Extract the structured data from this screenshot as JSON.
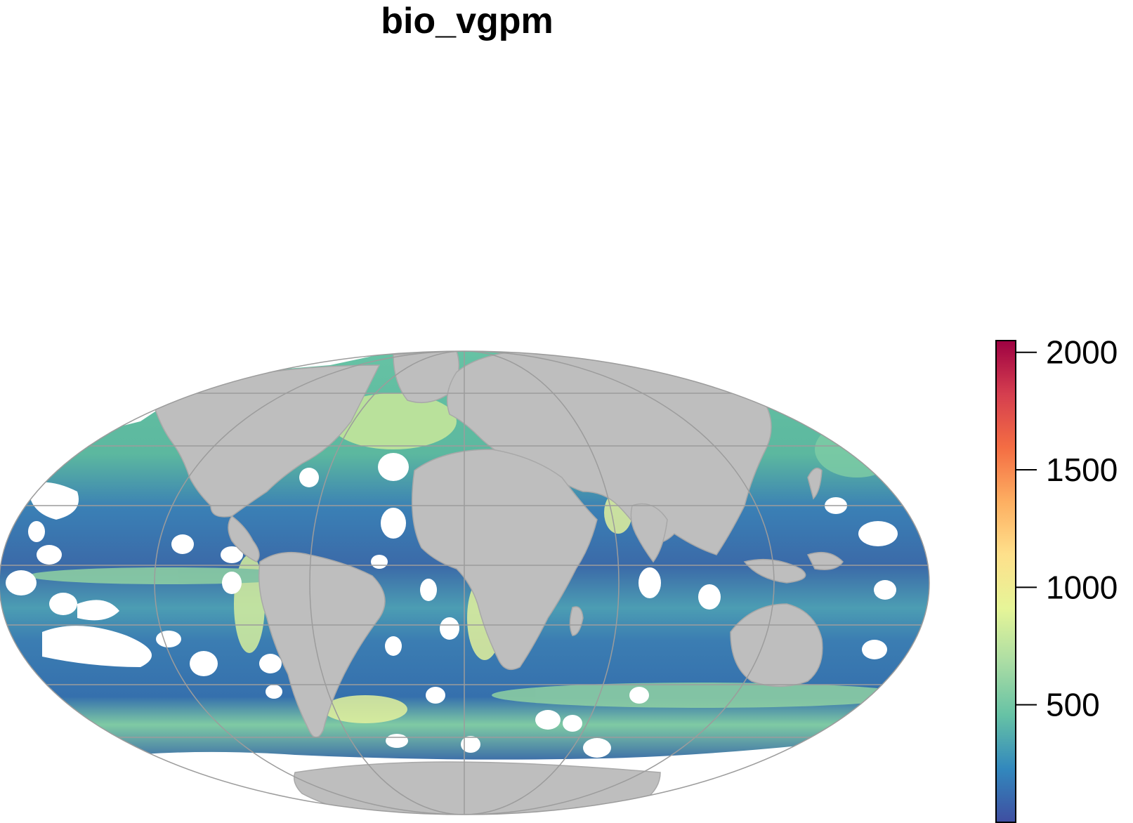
{
  "title": "bio_vgpm",
  "colors": {
    "land": "#bebebe",
    "land_border": "#a8a8a8",
    "graticule": "#9c9c9c",
    "no_data": "#ffffff",
    "ocean_low": "#3a4ea0",
    "ocean_mid": "#2f7fb4",
    "ocean_green": "#66c2a4",
    "ocean_high": "#e6f598"
  },
  "legend": {
    "min": 0,
    "max": 2050,
    "ticks": [
      {
        "value": 2000,
        "label": "2000"
      },
      {
        "value": 1500,
        "label": "1500"
      },
      {
        "value": 1000,
        "label": "1000"
      },
      {
        "value": 500,
        "label": "500"
      }
    ],
    "palette": [
      "#3f4ea1",
      "#3288bd",
      "#66c2a5",
      "#abdda4",
      "#e6f598",
      "#fee08b",
      "#fdae61",
      "#f46d43",
      "#d53e4f",
      "#9e0142"
    ]
  }
}
